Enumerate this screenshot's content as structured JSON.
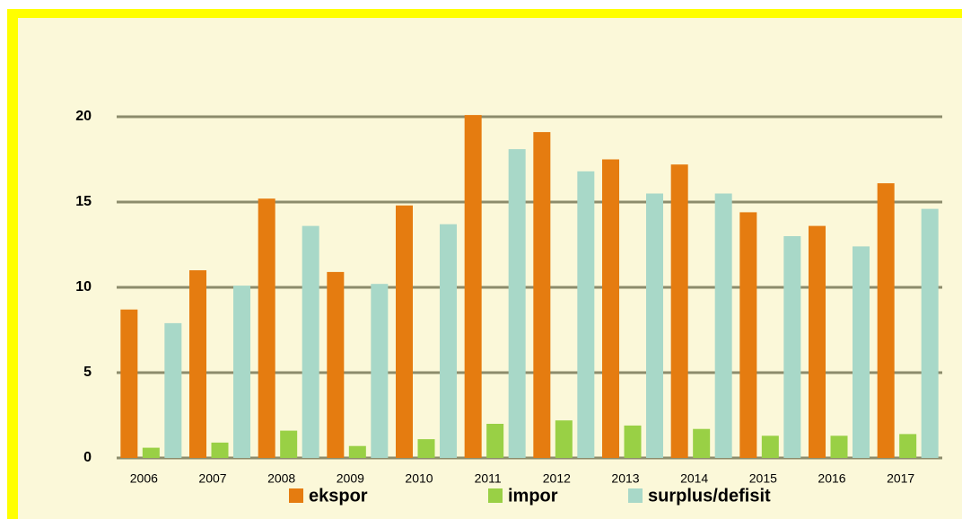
{
  "chart_data": {
    "type": "bar",
    "categories": [
      "2006",
      "2007",
      "2008",
      "2009",
      "2010",
      "2011",
      "2012",
      "2013",
      "2014",
      "2015",
      "2016",
      "2017"
    ],
    "series": [
      {
        "name": "ekspor",
        "color": "#e57c10",
        "values": [
          8.7,
          11.0,
          15.2,
          10.9,
          14.8,
          20.1,
          19.1,
          17.5,
          17.2,
          14.4,
          13.6,
          16.1
        ]
      },
      {
        "name": "impor",
        "color": "#99d045",
        "values": [
          0.6,
          0.9,
          1.6,
          0.7,
          1.1,
          2.0,
          2.2,
          1.9,
          1.7,
          1.3,
          1.3,
          1.4
        ]
      },
      {
        "name": "surplus/defisit",
        "color": "#a8d8c8",
        "values": [
          7.9,
          10.1,
          13.6,
          10.2,
          13.7,
          18.1,
          16.8,
          15.5,
          15.5,
          13.0,
          12.4,
          14.6
        ]
      }
    ],
    "ylim": [
      0,
      20
    ],
    "yticks": [
      0,
      5,
      10,
      15,
      20
    ],
    "grid": true,
    "legend": "bottom"
  }
}
